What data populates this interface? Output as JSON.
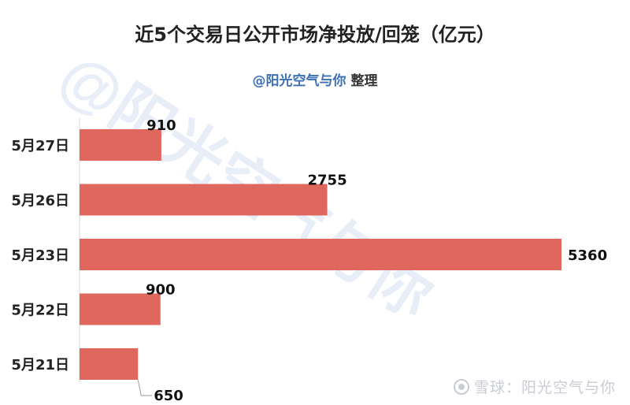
{
  "title": "近5个交易日公开市场净投放/回笼（亿元）",
  "subtitle": {
    "handle": "@阳光空气与你",
    "suffix": "整理"
  },
  "watermark": {
    "diagonal": "@阳光空气与你",
    "footer": "雪球：阳光空气与你"
  },
  "chart_data": {
    "type": "bar",
    "orientation": "horizontal",
    "categories": [
      "5月27日",
      "5月26日",
      "5月23日",
      "5月22日",
      "5月21日"
    ],
    "values": [
      910,
      2755,
      5360,
      900,
      650
    ],
    "data_labels": [
      "910",
      "2755",
      "5360",
      "900",
      "650"
    ],
    "bar_color": "#e0675d",
    "title": "近5个交易日公开市场净投放/回笼（亿元）",
    "xlabel": "",
    "ylabel": "",
    "xlim": [
      0,
      5360
    ],
    "grid": false,
    "legend": "none"
  }
}
